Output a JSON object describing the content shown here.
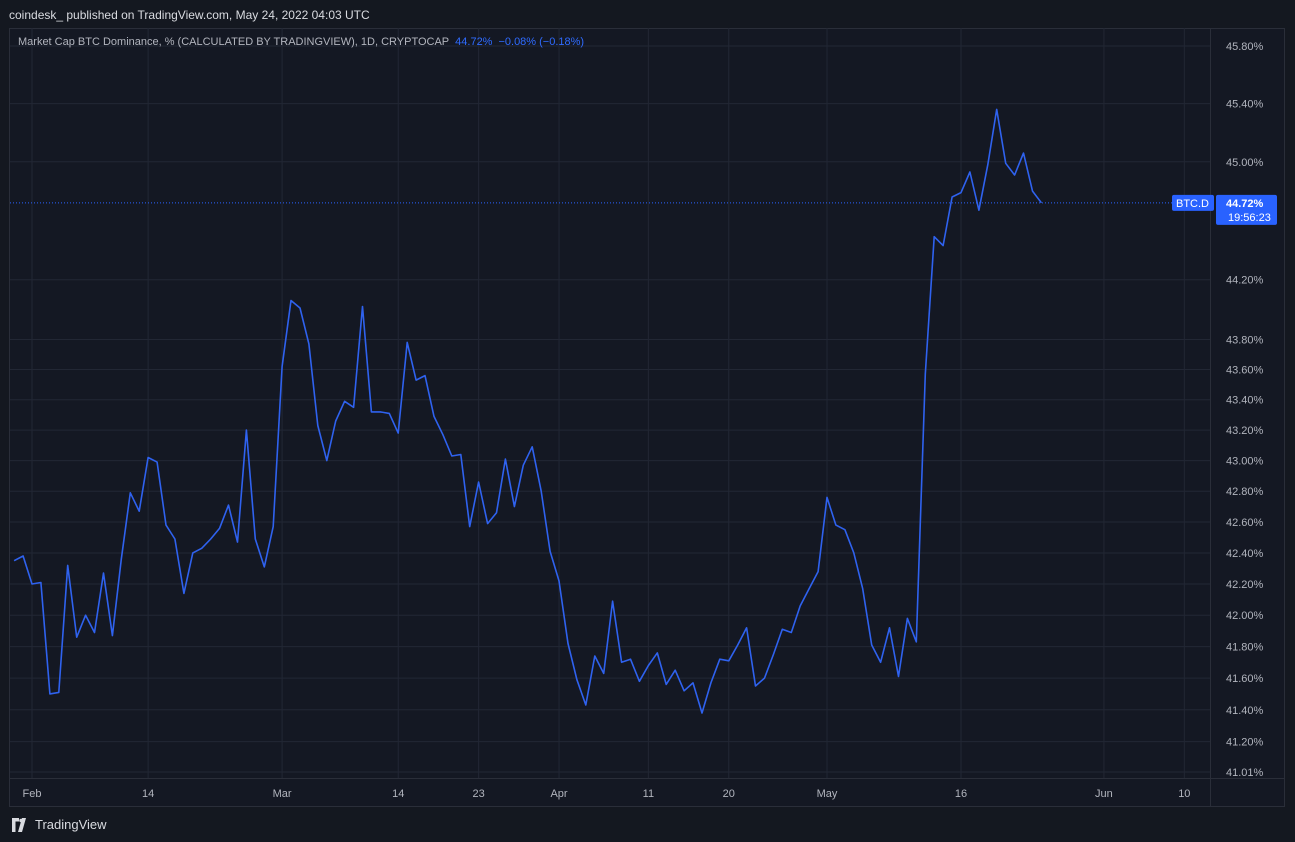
{
  "header": {
    "publisher": "coindesk_ published on TradingView.com, May 24, 2022 04:03 UTC"
  },
  "legend": {
    "title": "Market Cap BTC Dominance, % (CALCULATED BY TRADINGVIEW), 1D, CRYPTOCAP",
    "value": "44.72%",
    "change": "−0.08% (−0.18%)"
  },
  "price_tag": {
    "symbol": "BTC.D",
    "value": "44.72%",
    "countdown": "19:56:23"
  },
  "footer": {
    "brand": "TradingView"
  },
  "colors": {
    "line": "#2f62ef",
    "accent": "#2962ff",
    "background": "#141823",
    "grid": "#222734"
  },
  "chart_data": {
    "type": "line",
    "y_axis": {
      "scale": "log",
      "ticks": [
        "45.80%",
        "45.40%",
        "45.00%",
        "44.20%",
        "43.80%",
        "43.60%",
        "43.40%",
        "43.20%",
        "43.00%",
        "42.80%",
        "42.60%",
        "42.40%",
        "42.20%",
        "42.00%",
        "41.80%",
        "41.60%",
        "41.40%",
        "41.20%",
        "41.01%"
      ],
      "tick_values": [
        45.8,
        45.4,
        45.0,
        44.2,
        43.8,
        43.6,
        43.4,
        43.2,
        43.0,
        42.8,
        42.6,
        42.4,
        42.2,
        42.0,
        41.8,
        41.6,
        41.4,
        41.2,
        41.01
      ]
    },
    "x_axis": {
      "ticks": [
        "Feb",
        "14",
        "Mar",
        "14",
        "23",
        "Apr",
        "11",
        "20",
        "May",
        "16",
        "Jun",
        "10"
      ],
      "tick_dates": [
        "2022-02-01",
        "2022-02-14",
        "2022-03-01",
        "2022-03-14",
        "2022-03-23",
        "2022-04-01",
        "2022-04-11",
        "2022-04-20",
        "2022-05-01",
        "2022-05-16",
        "2022-06-01",
        "2022-06-10"
      ]
    },
    "grid": true,
    "series": [
      {
        "points": [
          [
            "2022-01-30",
            42.35
          ],
          [
            "2022-01-31",
            42.38
          ],
          [
            "2022-02-01",
            42.2
          ],
          [
            "2022-02-02",
            42.21
          ],
          [
            "2022-02-03",
            41.5
          ],
          [
            "2022-02-04",
            41.51
          ],
          [
            "2022-02-05",
            42.32
          ],
          [
            "2022-02-06",
            41.86
          ],
          [
            "2022-02-07",
            42.0
          ],
          [
            "2022-02-08",
            41.89
          ],
          [
            "2022-02-09",
            42.27
          ],
          [
            "2022-02-10",
            41.87
          ],
          [
            "2022-02-11",
            42.36
          ],
          [
            "2022-02-12",
            42.79
          ],
          [
            "2022-02-13",
            42.67
          ],
          [
            "2022-02-14",
            43.02
          ],
          [
            "2022-02-15",
            42.99
          ],
          [
            "2022-02-16",
            42.58
          ],
          [
            "2022-02-17",
            42.49
          ],
          [
            "2022-02-18",
            42.14
          ],
          [
            "2022-02-19",
            42.4
          ],
          [
            "2022-02-20",
            42.43
          ],
          [
            "2022-02-21",
            42.49
          ],
          [
            "2022-02-22",
            42.56
          ],
          [
            "2022-02-23",
            42.71
          ],
          [
            "2022-02-24",
            42.47
          ],
          [
            "2022-02-25",
            43.2
          ],
          [
            "2022-02-26",
            42.49
          ],
          [
            "2022-02-27",
            42.31
          ],
          [
            "2022-02-28",
            42.57
          ],
          [
            "2022-03-01",
            43.62
          ],
          [
            "2022-03-02",
            44.06
          ],
          [
            "2022-03-03",
            44.01
          ],
          [
            "2022-03-04",
            43.77
          ],
          [
            "2022-03-05",
            43.23
          ],
          [
            "2022-03-06",
            43.0
          ],
          [
            "2022-03-07",
            43.26
          ],
          [
            "2022-03-08",
            43.39
          ],
          [
            "2022-03-09",
            43.35
          ],
          [
            "2022-03-10",
            44.02
          ],
          [
            "2022-03-11",
            43.32
          ],
          [
            "2022-03-12",
            43.32
          ],
          [
            "2022-03-13",
            43.31
          ],
          [
            "2022-03-14",
            43.18
          ],
          [
            "2022-03-15",
            43.78
          ],
          [
            "2022-03-16",
            43.53
          ],
          [
            "2022-03-17",
            43.56
          ],
          [
            "2022-03-18",
            43.29
          ],
          [
            "2022-03-19",
            43.17
          ],
          [
            "2022-03-20",
            43.03
          ],
          [
            "2022-03-21",
            43.04
          ],
          [
            "2022-03-22",
            42.57
          ],
          [
            "2022-03-23",
            42.86
          ],
          [
            "2022-03-24",
            42.59
          ],
          [
            "2022-03-25",
            42.66
          ],
          [
            "2022-03-26",
            43.01
          ],
          [
            "2022-03-27",
            42.7
          ],
          [
            "2022-03-28",
            42.97
          ],
          [
            "2022-03-29",
            43.09
          ],
          [
            "2022-03-30",
            42.8
          ],
          [
            "2022-03-31",
            42.41
          ],
          [
            "2022-04-01",
            42.22
          ],
          [
            "2022-04-02",
            41.82
          ],
          [
            "2022-04-03",
            41.59
          ],
          [
            "2022-04-04",
            41.43
          ],
          [
            "2022-04-05",
            41.74
          ],
          [
            "2022-04-06",
            41.63
          ],
          [
            "2022-04-07",
            42.09
          ],
          [
            "2022-04-08",
            41.7
          ],
          [
            "2022-04-09",
            41.72
          ],
          [
            "2022-04-10",
            41.58
          ],
          [
            "2022-04-11",
            41.68
          ],
          [
            "2022-04-12",
            41.76
          ],
          [
            "2022-04-13",
            41.56
          ],
          [
            "2022-04-14",
            41.65
          ],
          [
            "2022-04-15",
            41.52
          ],
          [
            "2022-04-16",
            41.57
          ],
          [
            "2022-04-17",
            41.38
          ],
          [
            "2022-04-18",
            41.57
          ],
          [
            "2022-04-19",
            41.72
          ],
          [
            "2022-04-20",
            41.71
          ],
          [
            "2022-04-21",
            41.81
          ],
          [
            "2022-04-22",
            41.92
          ],
          [
            "2022-04-23",
            41.55
          ],
          [
            "2022-04-24",
            41.6
          ],
          [
            "2022-04-25",
            41.75
          ],
          [
            "2022-04-26",
            41.91
          ],
          [
            "2022-04-27",
            41.89
          ],
          [
            "2022-04-28",
            42.06
          ],
          [
            "2022-04-29",
            42.17
          ],
          [
            "2022-04-30",
            42.28
          ],
          [
            "2022-05-01",
            42.76
          ],
          [
            "2022-05-02",
            42.58
          ],
          [
            "2022-05-03",
            42.55
          ],
          [
            "2022-05-04",
            42.4
          ],
          [
            "2022-05-05",
            42.17
          ],
          [
            "2022-05-06",
            41.81
          ],
          [
            "2022-05-07",
            41.7
          ],
          [
            "2022-05-08",
            41.92
          ],
          [
            "2022-05-09",
            41.61
          ],
          [
            "2022-05-10",
            41.98
          ],
          [
            "2022-05-11",
            41.83
          ],
          [
            "2022-05-12",
            43.57
          ],
          [
            "2022-05-13",
            44.49
          ],
          [
            "2022-05-14",
            44.43
          ],
          [
            "2022-05-15",
            44.76
          ],
          [
            "2022-05-16",
            44.79
          ],
          [
            "2022-05-17",
            44.93
          ],
          [
            "2022-05-18",
            44.67
          ],
          [
            "2022-05-19",
            44.98
          ],
          [
            "2022-05-20",
            45.36
          ],
          [
            "2022-05-21",
            44.99
          ],
          [
            "2022-05-22",
            44.91
          ],
          [
            "2022-05-23",
            45.06
          ],
          [
            "2022-05-24",
            44.8
          ],
          [
            "2022-05-25",
            44.72
          ]
        ]
      }
    ],
    "last_value": 44.72
  }
}
